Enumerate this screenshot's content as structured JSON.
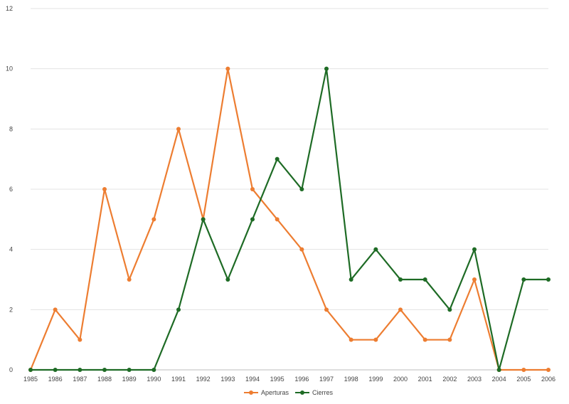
{
  "chart_data": {
    "type": "line",
    "title": "",
    "xlabel": "",
    "ylabel": "",
    "ylim": [
      0,
      12
    ],
    "yticks": [
      0,
      2,
      4,
      6,
      8,
      10,
      12
    ],
    "grid": true,
    "legend_position": "bottom",
    "categories": [
      "1985",
      "1986",
      "1987",
      "1988",
      "1989",
      "1990",
      "1991",
      "1992",
      "1993",
      "1994",
      "1995",
      "1996",
      "1997",
      "1998",
      "1999",
      "2000",
      "2001",
      "2002",
      "2003",
      "2004",
      "2005",
      "2006"
    ],
    "series": [
      {
        "name": "Aperturas",
        "color": "#ed7d31",
        "values": [
          0,
          2,
          1,
          6,
          3,
          5,
          8,
          5,
          10,
          6,
          5,
          4,
          2,
          1,
          1,
          2,
          1,
          1,
          3,
          0,
          0,
          0
        ]
      },
      {
        "name": "Cierres",
        "color": "#1e6b25",
        "values": [
          0,
          0,
          0,
          0,
          0,
          0,
          2,
          5,
          3,
          5,
          7,
          6,
          10,
          3,
          4,
          3,
          3,
          2,
          4,
          0,
          3,
          3
        ]
      }
    ]
  }
}
